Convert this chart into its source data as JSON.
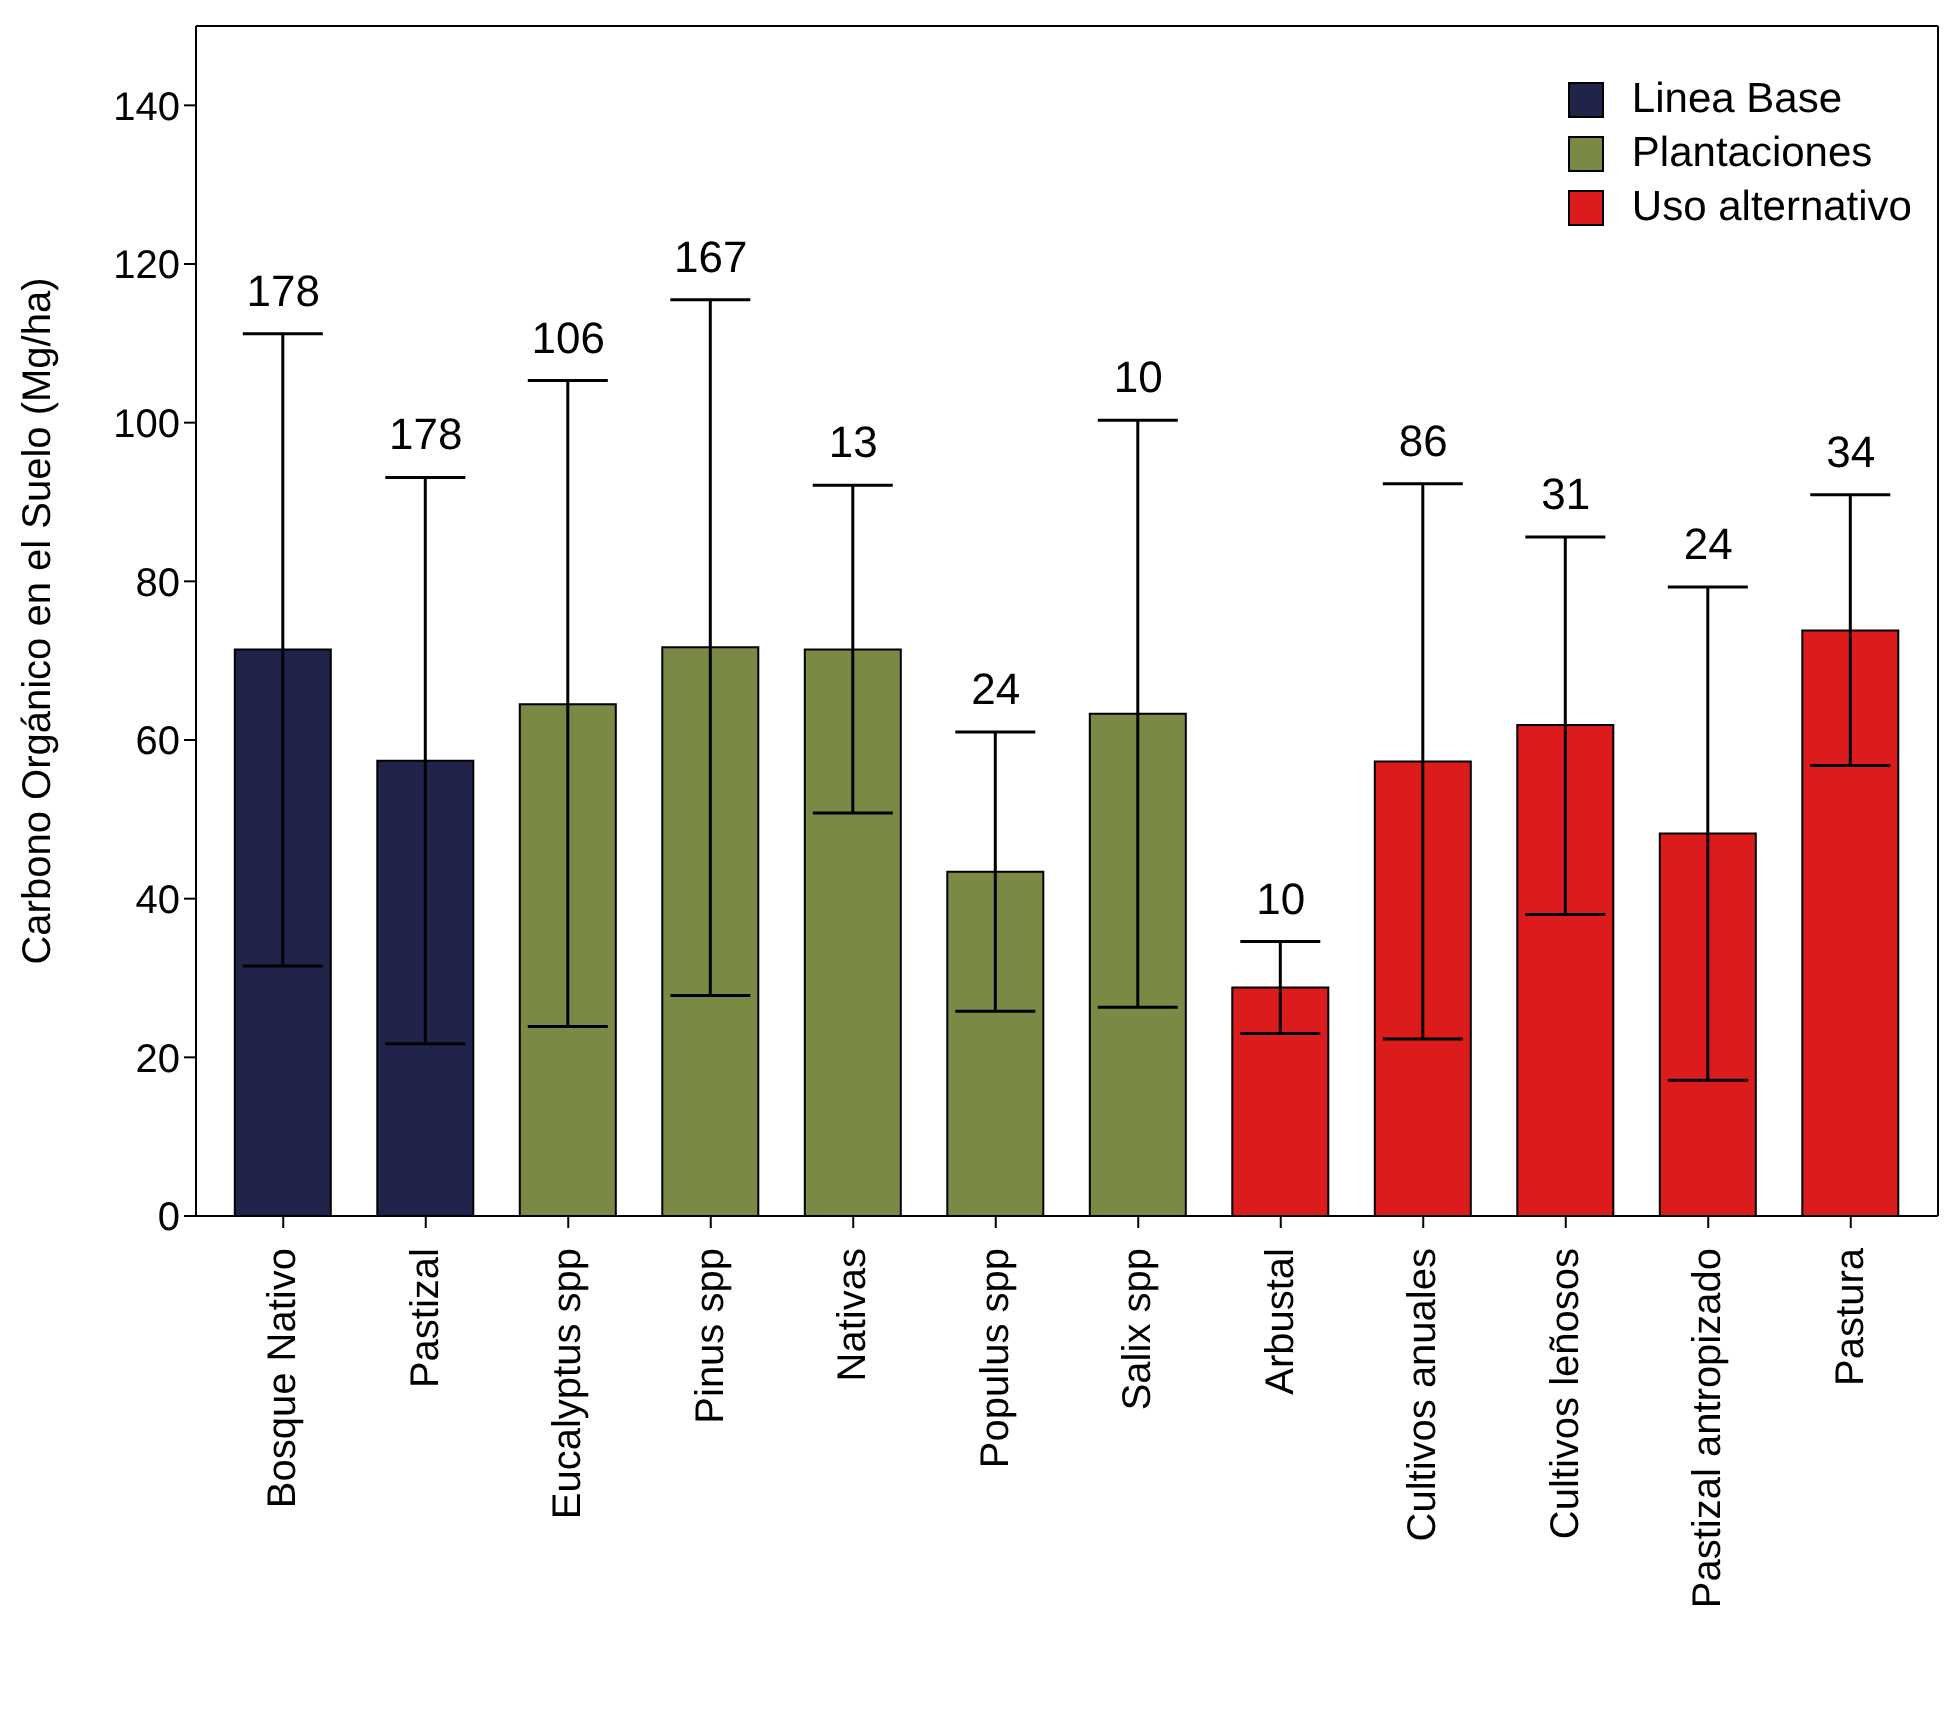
{
  "chart_data": {
    "type": "bar",
    "ylabel": "Carbono Orgánico en el Suelo (Mg/ha)",
    "categories": [
      "Bosque Nativo",
      "Pastizal",
      "Eucalyptus spp",
      "Pinus spp",
      "Nativas",
      "Populus spp",
      "Salix spp",
      "Arbustal",
      "Cultivos anuales",
      "Cultivos leñosos",
      "Pastizal antropizado",
      "Pastura"
    ],
    "series": [
      {
        "name": "Linea Base",
        "color": "#20234a",
        "values": [
          71.4,
          57.4,
          null,
          null,
          null,
          null,
          null,
          null,
          null,
          null,
          null,
          null
        ],
        "errors": [
          [
            31.5,
            111.2
          ],
          [
            21.7,
            93.1
          ],
          null,
          null,
          null,
          null,
          null,
          null,
          null,
          null,
          null,
          null
        ]
      },
      {
        "name": "Plantaciones",
        "color": "#7a8a45",
        "values": [
          null,
          null,
          64.5,
          71.7,
          71.4,
          43.4,
          63.3,
          null,
          null,
          null,
          null,
          null
        ],
        "errors": [
          null,
          null,
          [
            23.9,
            105.3
          ],
          [
            27.8,
            115.5
          ],
          [
            50.8,
            92.1
          ],
          [
            25.8,
            61.0
          ],
          [
            26.3,
            100.3
          ],
          null,
          null,
          null,
          null,
          null
        ]
      },
      {
        "name": "Uso alternativo",
        "color": "#dc1c1c",
        "values": [
          null,
          null,
          null,
          null,
          null,
          null,
          null,
          28.8,
          57.3,
          61.9,
          48.2,
          73.8
        ],
        "errors": [
          null,
          null,
          null,
          null,
          null,
          null,
          null,
          [
            23.0,
            34.6
          ],
          [
            22.3,
            92.3
          ],
          [
            38.0,
            85.6
          ],
          [
            17.1,
            79.3
          ],
          [
            56.8,
            90.9
          ]
        ]
      }
    ],
    "ylim": [
      0,
      150
    ],
    "yticks": [
      0,
      20,
      40,
      60,
      80,
      100,
      120,
      140
    ],
    "legend": "top right",
    "annotations": [
      {
        "text": "178",
        "x": "Bosque Nativo",
        "y": 111.2
      },
      {
        "text": "178",
        "x": "Pastizal",
        "y": 93.1
      },
      {
        "text": "106",
        "x": "Eucalyptus spp",
        "y": 105.3
      },
      {
        "text": "167",
        "x": "Pinus spp",
        "y": 115.5
      },
      {
        "text": "13",
        "x": "Nativas",
        "y": 92.1
      },
      {
        "text": "24",
        "x": "Populus spp",
        "y": 61.0
      },
      {
        "text": "10",
        "x": "Salix spp",
        "y": 100.3
      },
      {
        "text": "10",
        "x": "Arbustal",
        "y": 34.6
      },
      {
        "text": "86",
        "x": "Cultivos anuales",
        "y": 92.3
      },
      {
        "text": "31",
        "x": "Cultivos leñosos",
        "y": 85.6
      },
      {
        "text": "24",
        "x": "Pastizal antropizado",
        "y": 79.3
      },
      {
        "text": "34",
        "x": "Pastura",
        "y": 90.9
      }
    ]
  }
}
